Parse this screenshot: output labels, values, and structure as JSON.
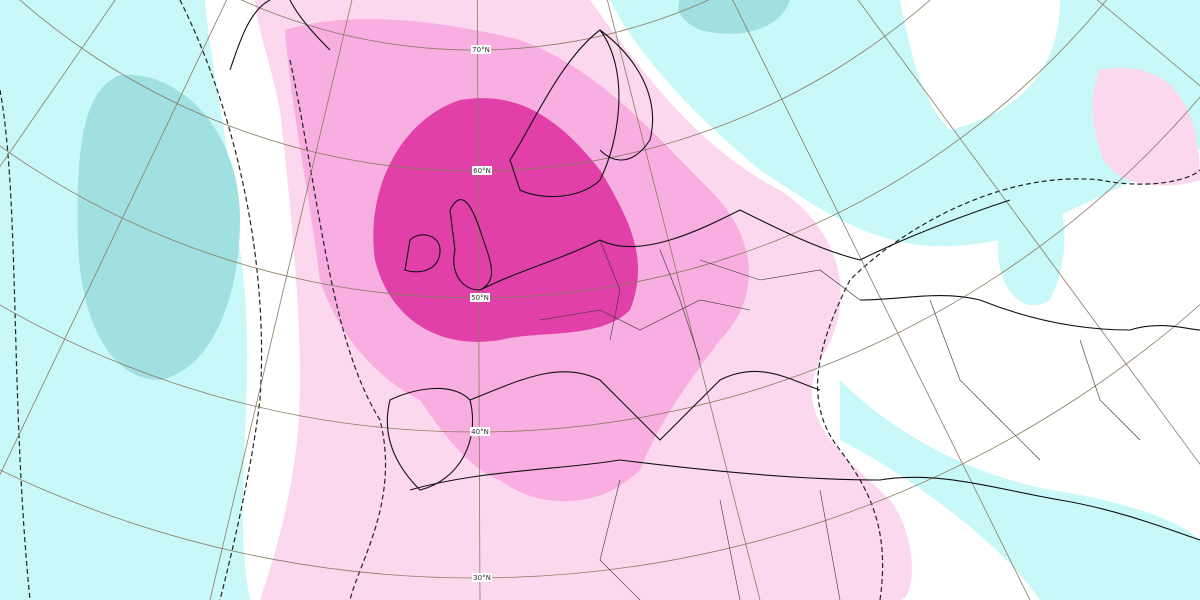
{
  "graticule_labels": [
    "70°N",
    "60°N",
    "50°N",
    "40°N",
    "30°N"
  ]
}
